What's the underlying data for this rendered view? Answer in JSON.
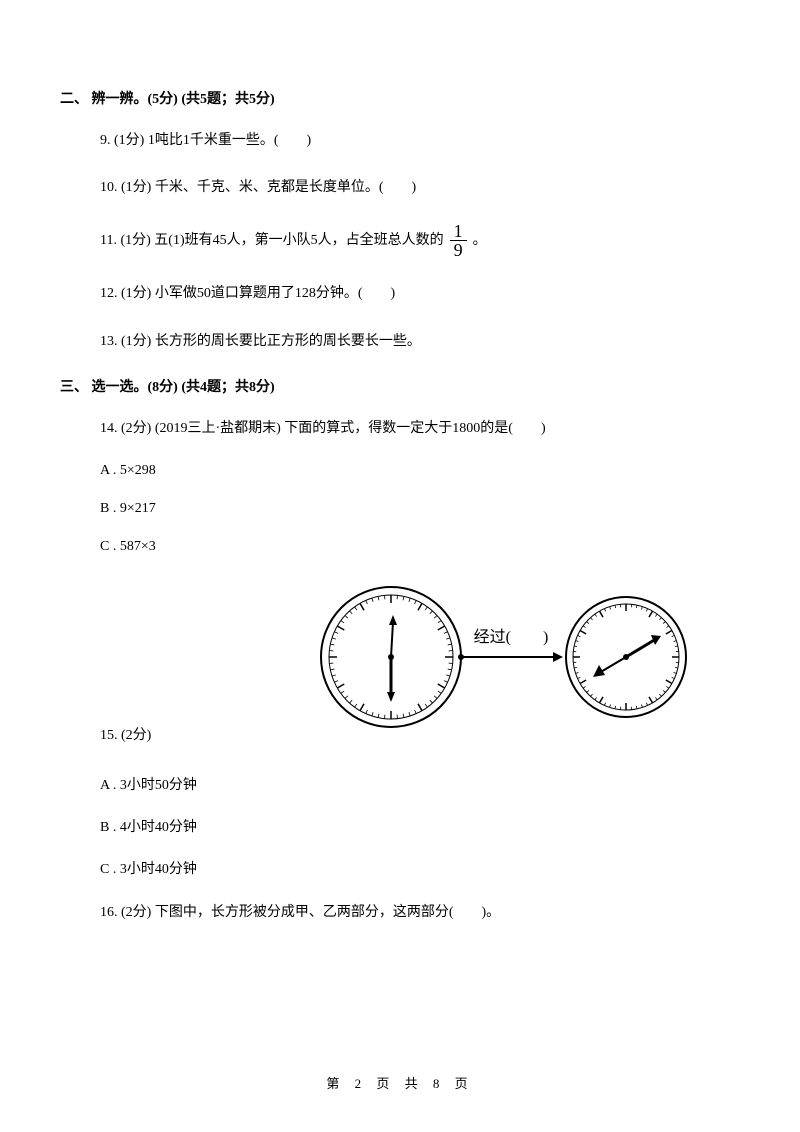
{
  "section2": {
    "title": "二、 辨一辨。(5分)  (共5题；共5分)",
    "questions": {
      "q9": "9.  (1分)  1吨比1千米重一些。(　　)",
      "q10": "10.  (1分)  千米、千克、米、克都是长度单位。(　　)",
      "q11_prefix": "11.  (1分)  五(1)班有45人，第一小队5人，占全班总人数的 ",
      "q11_frac_num": "1",
      "q11_frac_den": "9",
      "q11_suffix": " 。",
      "q12": "12.  (1分)  小军做50道口算题用了128分钟。(　　)",
      "q13": "13.  (1分)  长方形的周长要比正方形的周长要长一些。"
    }
  },
  "section3": {
    "title": "三、 选一选。(8分)  (共4题；共8分)",
    "q14": {
      "text": "14.  (2分)  (2019三上·盐都期末) 下面的算式，得数一定大于1800的是(　　)",
      "optA": "A . 5×298",
      "optB": "B . 9×217",
      "optC": "C . 587×3"
    },
    "q15": {
      "label": "15.  (2分)",
      "clock_label": "经过(　　)",
      "optA": "A . 3小时50分钟",
      "optB": "B . 4小时40分钟",
      "optC": "C . 3小时40分钟"
    },
    "q16": {
      "text": "16.  (2分)  下图中，长方形被分成甲、乙两部分，这两部分(　　)。"
    }
  },
  "footer": "第 2 页 共 8 页",
  "style": {
    "text_color": "#000000",
    "background_color": "#ffffff",
    "clock_stroke": "#000000",
    "clock_fill": "#ffffff",
    "clock1_radius": 70,
    "clock2_radius": 60,
    "tick_count": 60
  }
}
